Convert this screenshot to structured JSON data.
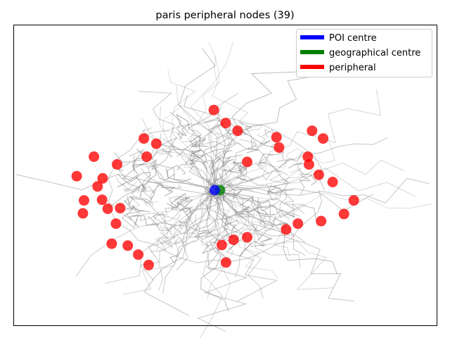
{
  "chart_data": {
    "type": "scatter",
    "title": "paris peripheral nodes (39)",
    "xlabel": "",
    "ylabel": "",
    "xlim": [
      2.205,
      2.505
    ],
    "ylim": [
      48.77,
      48.96
    ],
    "grid": false,
    "ticks_visible": false,
    "legend": {
      "placement": "top-right",
      "entries": [
        {
          "label": "POI centre",
          "color": "#0000ff"
        },
        {
          "label": "geographical centre",
          "color": "#008000"
        },
        {
          "label": "peripheral",
          "color": "#ff0000"
        }
      ]
    },
    "background_network": {
      "color": "#808080",
      "description_visible": false
    },
    "series": [
      {
        "name": "POI centre",
        "color": "#0000ff",
        "points": [
          {
            "x": 2.3472,
            "y": 48.8559
          }
        ]
      },
      {
        "name": "geographical centre",
        "color": "#008000",
        "points": [
          {
            "x": 2.351,
            "y": 48.8559
          }
        ]
      },
      {
        "name": "peripheral",
        "color": "#ff0000",
        "points": [
          {
            "x": 2.3466,
            "y": 48.9065
          },
          {
            "x": 2.355,
            "y": 48.8983
          },
          {
            "x": 2.3634,
            "y": 48.8934
          },
          {
            "x": 2.391,
            "y": 48.8893
          },
          {
            "x": 2.3928,
            "y": 48.8828
          },
          {
            "x": 2.4162,
            "y": 48.8934
          },
          {
            "x": 2.424,
            "y": 48.8885
          },
          {
            "x": 2.297,
            "y": 48.8885
          },
          {
            "x": 2.3058,
            "y": 48.8852
          },
          {
            "x": 2.2616,
            "y": 48.877
          },
          {
            "x": 2.278,
            "y": 48.8721
          },
          {
            "x": 2.299,
            "y": 48.877
          },
          {
            "x": 2.3702,
            "y": 48.8737
          },
          {
            "x": 2.4132,
            "y": 48.877
          },
          {
            "x": 2.414,
            "y": 48.8721
          },
          {
            "x": 2.421,
            "y": 48.8656
          },
          {
            "x": 2.4308,
            "y": 48.861
          },
          {
            "x": 2.2494,
            "y": 48.8647
          },
          {
            "x": 2.2678,
            "y": 48.8633
          },
          {
            "x": 2.2642,
            "y": 48.8582
          },
          {
            "x": 2.2546,
            "y": 48.8494
          },
          {
            "x": 2.2674,
            "y": 48.8498
          },
          {
            "x": 2.2714,
            "y": 48.8441
          },
          {
            "x": 2.2802,
            "y": 48.8445
          },
          {
            "x": 2.2538,
            "y": 48.8412
          },
          {
            "x": 2.2772,
            "y": 48.8347
          },
          {
            "x": 2.4458,
            "y": 48.8494
          },
          {
            "x": 2.4388,
            "y": 48.8408
          },
          {
            "x": 2.4226,
            "y": 48.8363
          },
          {
            "x": 2.4062,
            "y": 48.8347
          },
          {
            "x": 2.3978,
            "y": 48.831
          },
          {
            "x": 2.3702,
            "y": 48.8261
          },
          {
            "x": 2.3606,
            "y": 48.8245
          },
          {
            "x": 2.3522,
            "y": 48.8212
          },
          {
            "x": 2.2742,
            "y": 48.822
          },
          {
            "x": 2.2856,
            "y": 48.8208
          },
          {
            "x": 2.293,
            "y": 48.8151
          },
          {
            "x": 2.3004,
            "y": 48.8086
          },
          {
            "x": 2.3552,
            "y": 48.8102
          }
        ]
      }
    ]
  }
}
